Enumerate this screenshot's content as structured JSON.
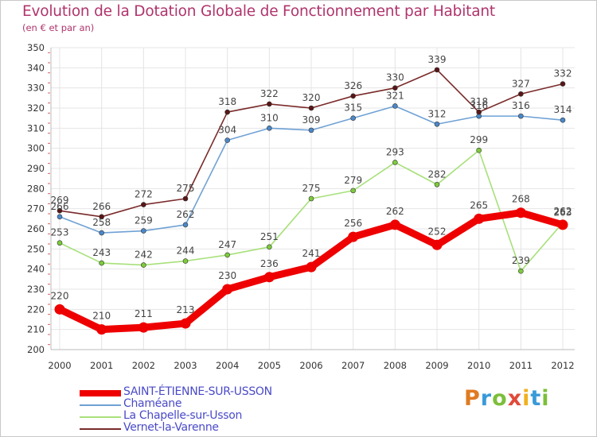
{
  "title": "Evolution de la Dotation Globale de Fonctionnement par Habitant",
  "subtitle": "(en € et par an)",
  "logo": {
    "text": "Proxiti",
    "colors": [
      "#e07a22",
      "#3a9ad9",
      "#7cbf3a",
      "#e04a3a",
      "#f0b01e",
      "#3a9ad9",
      "#7cbf3a"
    ]
  },
  "chart_data": {
    "type": "line",
    "title": "Evolution de la Dotation Globale de Fonctionnement par Habitant",
    "subtitle": "(en € et par an)",
    "xlabel": "",
    "ylabel": "",
    "ylim": [
      200,
      350
    ],
    "ytick_step": 10,
    "grid": true,
    "legend_position": "bottom-left",
    "x": [
      2000,
      2001,
      2002,
      2003,
      2004,
      2005,
      2006,
      2007,
      2008,
      2009,
      2010,
      2011,
      2012
    ],
    "series": [
      {
        "name": "SAINT-ÉTIENNE-SUR-USSON",
        "color": "#ee0000",
        "marker_color": "#ee0000",
        "width": "thick",
        "values": [
          220,
          210,
          211,
          213,
          230,
          236,
          241,
          256,
          262,
          252,
          265,
          268,
          262
        ]
      },
      {
        "name": "Chaméane",
        "color": "#6fa1d4",
        "marker_color": "#4a88c8",
        "width": "thin",
        "values": [
          266,
          258,
          259,
          262,
          304,
          310,
          309,
          315,
          321,
          312,
          316,
          316,
          314
        ]
      },
      {
        "name": "La Chapelle-sur-Usson",
        "color": "#a8e07a",
        "marker_color": "#7ccc3a",
        "width": "thin",
        "values": [
          253,
          243,
          242,
          244,
          247,
          251,
          275,
          279,
          293,
          282,
          299,
          239,
          263
        ]
      },
      {
        "name": "Vernet-la-Varenne",
        "color": "#7a2a2a",
        "marker_color": "#5a1515",
        "width": "thin",
        "values": [
          269,
          266,
          272,
          275,
          318,
          322,
          320,
          326,
          330,
          339,
          318,
          327,
          332
        ]
      }
    ]
  }
}
